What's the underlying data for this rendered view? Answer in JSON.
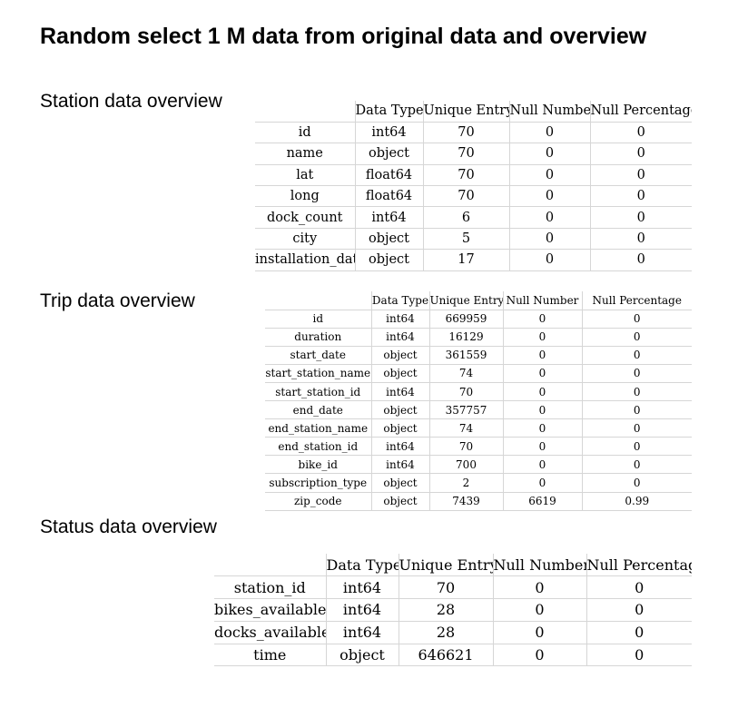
{
  "title": "Random select 1 M data from original data and overview",
  "columns": [
    "Data Type",
    "Unique Entry",
    "Null Number",
    "Null Percentage"
  ],
  "station": {
    "heading": "Station data overview",
    "rows": [
      {
        "name": "id",
        "type": "int64",
        "unique": "70",
        "null_number": "0",
        "null_pct": "0"
      },
      {
        "name": "name",
        "type": "object",
        "unique": "70",
        "null_number": "0",
        "null_pct": "0"
      },
      {
        "name": "lat",
        "type": "float64",
        "unique": "70",
        "null_number": "0",
        "null_pct": "0"
      },
      {
        "name": "long",
        "type": "float64",
        "unique": "70",
        "null_number": "0",
        "null_pct": "0"
      },
      {
        "name": "dock_count",
        "type": "int64",
        "unique": "6",
        "null_number": "0",
        "null_pct": "0"
      },
      {
        "name": "city",
        "type": "object",
        "unique": "5",
        "null_number": "0",
        "null_pct": "0"
      },
      {
        "name": "installation_date",
        "type": "object",
        "unique": "17",
        "null_number": "0",
        "null_pct": "0"
      }
    ]
  },
  "trip": {
    "heading": "Trip data overview",
    "rows": [
      {
        "name": "id",
        "type": "int64",
        "unique": "669959",
        "null_number": "0",
        "null_pct": "0"
      },
      {
        "name": "duration",
        "type": "int64",
        "unique": "16129",
        "null_number": "0",
        "null_pct": "0"
      },
      {
        "name": "start_date",
        "type": "object",
        "unique": "361559",
        "null_number": "0",
        "null_pct": "0"
      },
      {
        "name": "start_station_name",
        "type": "object",
        "unique": "74",
        "null_number": "0",
        "null_pct": "0"
      },
      {
        "name": "start_station_id",
        "type": "int64",
        "unique": "70",
        "null_number": "0",
        "null_pct": "0"
      },
      {
        "name": "end_date",
        "type": "object",
        "unique": "357757",
        "null_number": "0",
        "null_pct": "0"
      },
      {
        "name": "end_station_name",
        "type": "object",
        "unique": "74",
        "null_number": "0",
        "null_pct": "0"
      },
      {
        "name": "end_station_id",
        "type": "int64",
        "unique": "70",
        "null_number": "0",
        "null_pct": "0"
      },
      {
        "name": "bike_id",
        "type": "int64",
        "unique": "700",
        "null_number": "0",
        "null_pct": "0"
      },
      {
        "name": "subscription_type",
        "type": "object",
        "unique": "2",
        "null_number": "0",
        "null_pct": "0"
      },
      {
        "name": "zip_code",
        "type": "object",
        "unique": "7439",
        "null_number": "6619",
        "null_pct": "0.99"
      }
    ]
  },
  "status": {
    "heading": "Status data overview",
    "rows": [
      {
        "name": "station_id",
        "type": "int64",
        "unique": "70",
        "null_number": "0",
        "null_pct": "0"
      },
      {
        "name": "bikes_available",
        "type": "int64",
        "unique": "28",
        "null_number": "0",
        "null_pct": "0"
      },
      {
        "name": "docks_available",
        "type": "int64",
        "unique": "28",
        "null_number": "0",
        "null_pct": "0"
      },
      {
        "name": "time",
        "type": "object",
        "unique": "646621",
        "null_number": "0",
        "null_pct": "0"
      }
    ]
  }
}
